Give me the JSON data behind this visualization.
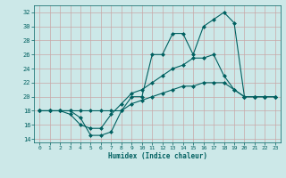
{
  "xlabel": "Humidex (Indice chaleur)",
  "bg_color": "#cce8e8",
  "grid_color": "#c8a8a8",
  "line_color": "#006060",
  "xlim": [
    -0.5,
    23.5
  ],
  "ylim": [
    13.5,
    33
  ],
  "xticks": [
    0,
    1,
    2,
    3,
    4,
    5,
    6,
    7,
    8,
    9,
    10,
    11,
    12,
    13,
    14,
    15,
    16,
    17,
    18,
    19,
    20,
    21,
    22,
    23
  ],
  "yticks": [
    14,
    16,
    18,
    20,
    22,
    24,
    26,
    28,
    30,
    32
  ],
  "line1_x": [
    0,
    1,
    2,
    3,
    4,
    5,
    6,
    7,
    8,
    9,
    10,
    11,
    12,
    13,
    14,
    15,
    16,
    17,
    18,
    19,
    20,
    21,
    22,
    23
  ],
  "line1_y": [
    18,
    18,
    18,
    18,
    17,
    14.5,
    14.5,
    15,
    18,
    20,
    20,
    26,
    26,
    29,
    29,
    26,
    30,
    31,
    32,
    30.5,
    20,
    20,
    20,
    20
  ],
  "line2_x": [
    0,
    1,
    2,
    3,
    4,
    5,
    6,
    7,
    8,
    9,
    10,
    11,
    12,
    13,
    14,
    15,
    16,
    17,
    18,
    19,
    20,
    21,
    22,
    23
  ],
  "line2_y": [
    18,
    18,
    18,
    17.5,
    16,
    15.5,
    15.5,
    17.5,
    19,
    20.5,
    21,
    22,
    23,
    24,
    24.5,
    25.5,
    25.5,
    26,
    23,
    21,
    20,
    20,
    20,
    20
  ],
  "line3_x": [
    0,
    1,
    2,
    3,
    4,
    5,
    6,
    7,
    8,
    9,
    10,
    11,
    12,
    13,
    14,
    15,
    16,
    17,
    18,
    19,
    20,
    21,
    22,
    23
  ],
  "line3_y": [
    18,
    18,
    18,
    18,
    18,
    18,
    18,
    18,
    18,
    19,
    19.5,
    20,
    20.5,
    21,
    21.5,
    21.5,
    22,
    22,
    22,
    21,
    20,
    20,
    20,
    20
  ]
}
